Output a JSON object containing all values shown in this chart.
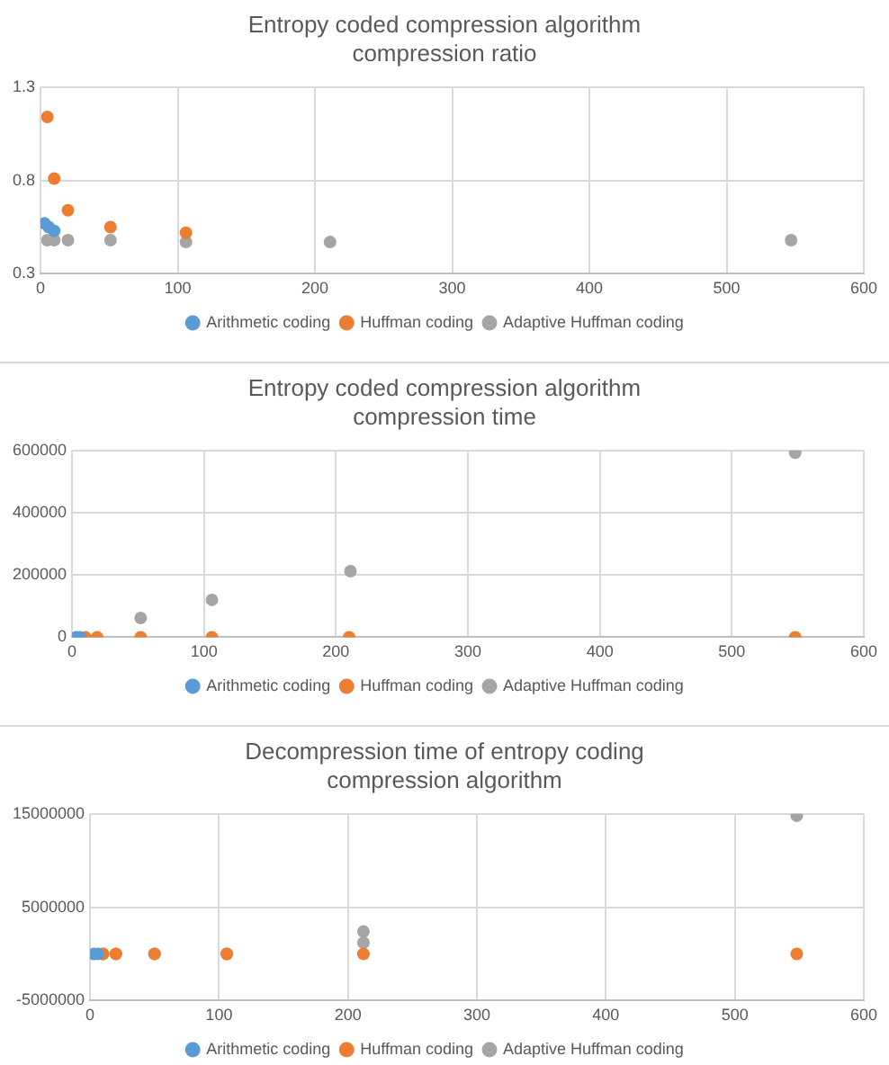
{
  "chart_data": [
    {
      "type": "scatter",
      "title": "Entropy coded compression algorithm compression ratio",
      "xlim": [
        0,
        600
      ],
      "xticks": [
        0,
        100,
        200,
        300,
        400,
        500,
        600
      ],
      "ylim": [
        0.3,
        1.3
      ],
      "yticks": [
        0.3,
        0.8,
        1.3
      ],
      "grid": true,
      "legend": "bottom",
      "marker": "circle",
      "series": [
        {
          "name": "Arithmetic coding",
          "color": "#5b9bd5",
          "x": [
            3,
            6,
            10
          ],
          "values": [
            0.57,
            0.55,
            0.53
          ]
        },
        {
          "name": "Huffman coding",
          "color": "#ed7d31",
          "x": [
            5,
            10,
            20,
            51,
            106
          ],
          "values": [
            1.14,
            0.81,
            0.64,
            0.55,
            0.52
          ]
        },
        {
          "name": "Adaptive Huffman coding",
          "color": "#a5a5a5",
          "x": [
            5,
            10,
            20,
            51,
            106,
            211,
            547
          ],
          "values": [
            0.48,
            0.48,
            0.48,
            0.48,
            0.47,
            0.47,
            0.48
          ]
        }
      ]
    },
    {
      "type": "scatter",
      "title": "Entropy coded compression algorithm compression time",
      "xlim": [
        0,
        600
      ],
      "xticks": [
        0,
        100,
        200,
        300,
        400,
        500,
        600
      ],
      "ylim": [
        0,
        600000
      ],
      "yticks": [
        0,
        200000,
        400000,
        600000
      ],
      "grid": true,
      "legend": "bottom",
      "marker": "circle",
      "series": [
        {
          "name": "Arithmetic coding",
          "color": "#5b9bd5",
          "x": [
            3,
            6
          ],
          "values": [
            0,
            0
          ]
        },
        {
          "name": "Huffman coding",
          "color": "#ed7d31",
          "x": [
            10,
            19,
            52,
            106,
            210,
            548
          ],
          "values": [
            0,
            0,
            0,
            0,
            0,
            0
          ]
        },
        {
          "name": "Adaptive Huffman coding",
          "color": "#a5a5a5",
          "x": [
            52,
            106,
            211,
            548
          ],
          "values": [
            62000,
            120000,
            212000,
            593000
          ]
        }
      ]
    },
    {
      "type": "scatter",
      "title": "Decompression time of entropy coding compression algorithm",
      "xlim": [
        0,
        600
      ],
      "xticks": [
        0,
        100,
        200,
        300,
        400,
        500,
        600
      ],
      "ylim": [
        -5000000,
        15000000
      ],
      "yticks": [
        -5000000,
        5000000,
        15000000
      ],
      "grid": true,
      "legend": "bottom",
      "marker": "circle",
      "series": [
        {
          "name": "Arithmetic coding",
          "color": "#5b9bd5",
          "x": [
            3,
            6
          ],
          "values": [
            0,
            0
          ]
        },
        {
          "name": "Huffman coding",
          "color": "#ed7d31",
          "x": [
            10,
            20,
            50,
            106,
            212,
            548
          ],
          "values": [
            0,
            0,
            0,
            0,
            0,
            0
          ]
        },
        {
          "name": "Adaptive Huffman coding",
          "color": "#a5a5a5",
          "x": [
            10,
            20,
            50,
            106,
            212,
            212,
            548
          ],
          "values": [
            0,
            0,
            0,
            0,
            1200000,
            2400000,
            14800000
          ]
        }
      ]
    }
  ]
}
